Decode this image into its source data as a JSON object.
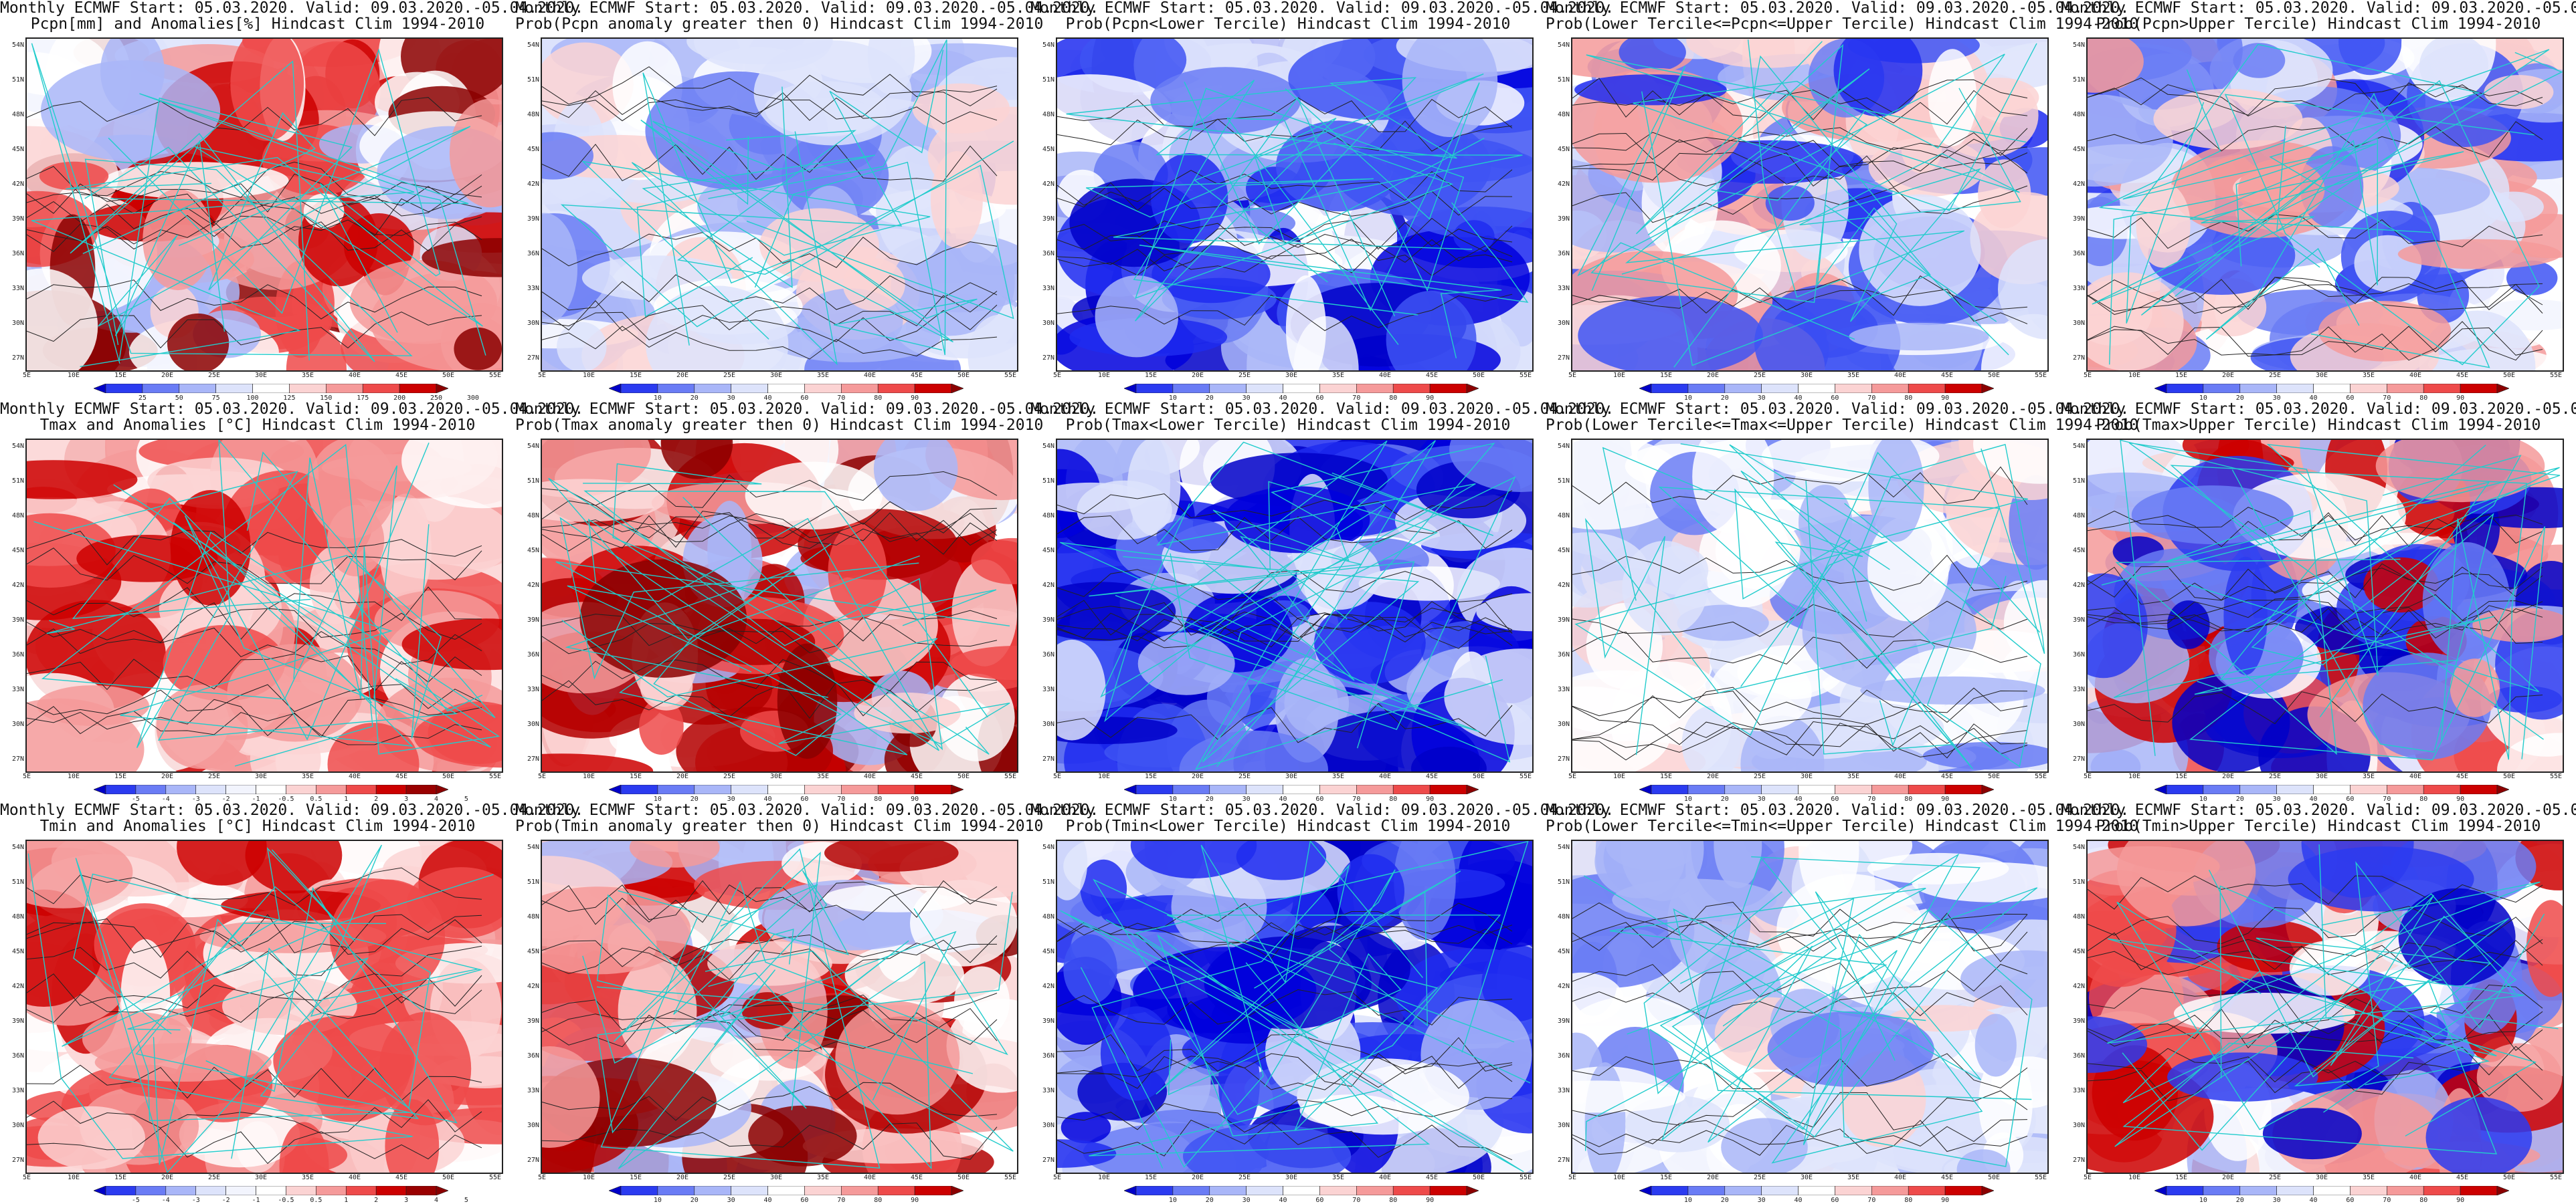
{
  "rows": [
    {
      "variable": "Pcpn",
      "panels": [
        {
          "line1": "Monthly ECMWF Start: 05.03.2020. Valid: 09.03.2020.-05.04.2020.",
          "line2": "Pcpn[mm] and Anomalies[%] Hindcast Clim 1994-2010",
          "scale": "precip_anom",
          "palette": "mixed_dry",
          "seed": 11
        },
        {
          "line1": "Monthly ECMWF Start: 05.03.2020. Valid: 09.03.2020.-05.04.2020.",
          "line2": "Prob(Pcpn anomaly greater then 0) Hindcast Clim 1994-2010",
          "scale": "prob",
          "palette": "blue_light",
          "seed": 12
        },
        {
          "line1": "Monthly ECMWF Start: 05.03.2020. Valid: 09.03.2020.-05.04.2020.",
          "line2": "Prob(Pcpn<Lower Tercile) Hindcast Clim 1994-2010",
          "scale": "prob",
          "palette": "blue_strong",
          "seed": 13
        },
        {
          "line1": "Monthly ECMWF Start: 05.03.2020. Valid: 09.03.2020.-05.04.2020.",
          "line2": "Prob(Lower Tercile<=Pcpn<=Upper Tercile) Hindcast Clim 1994-2010",
          "scale": "prob",
          "palette": "blue_mid",
          "seed": 14
        },
        {
          "line1": "Monthly ECMWF Start: 05.03.2020. Valid: 09.03.2020.-05.04.2020.",
          "line2": "Prob(Pcpn>Upper Tercile) Hindcast Clim 1994-2010",
          "scale": "prob",
          "palette": "blue_mid",
          "seed": 15
        }
      ]
    },
    {
      "variable": "Tmax",
      "panels": [
        {
          "line1": "Monthly ECMWF Start: 05.03.2020. Valid: 09.03.2020.-05.04.2020.",
          "line2": "Tmax and Anomalies [°C] Hindcast Clim 1994-2010",
          "scale": "temp_anom",
          "palette": "red_mid",
          "seed": 21
        },
        {
          "line1": "Monthly ECMWF Start: 05.03.2020. Valid: 09.03.2020.-05.04.2020.",
          "line2": "Prob(Tmax anomaly greater then 0) Hindcast Clim 1994-2010",
          "scale": "prob",
          "palette": "red_strong",
          "seed": 22
        },
        {
          "line1": "Monthly ECMWF Start: 05.03.2020. Valid: 09.03.2020.-05.04.2020.",
          "line2": "Prob(Tmax<Lower Tercile) Hindcast Clim 1994-2010",
          "scale": "prob",
          "palette": "blue_strong",
          "seed": 23
        },
        {
          "line1": "Monthly ECMWF Start: 05.03.2020. Valid: 09.03.2020.-05.04.2020.",
          "line2": "Prob(Lower Tercile<=Tmax<=Upper Tercile) Hindcast Clim 1994-2010",
          "scale": "prob",
          "palette": "blue_light",
          "seed": 24
        },
        {
          "line1": "Monthly ECMWF Start: 05.03.2020. Valid: 09.03.2020.-05.04.2020.",
          "line2": "Prob(Tmax>Upper Tercile) Hindcast Clim 1994-2010",
          "scale": "prob",
          "palette": "mixed_rb",
          "seed": 25
        }
      ]
    },
    {
      "variable": "Tmin",
      "panels": [
        {
          "line1": "Monthly ECMWF Start: 05.03.2020. Valid: 09.03.2020.-05.04.2020.",
          "line2": "Tmin and Anomalies [°C] Hindcast Clim 1994-2010",
          "scale": "temp_anom",
          "palette": "red_mid",
          "seed": 31
        },
        {
          "line1": "Monthly ECMWF Start: 05.03.2020. Valid: 09.03.2020.-05.04.2020.",
          "line2": "Prob(Tmin anomaly greater then 0) Hindcast Clim 1994-2010",
          "scale": "prob",
          "palette": "red_strong",
          "seed": 32
        },
        {
          "line1": "Monthly ECMWF Start: 05.03.2020. Valid: 09.03.2020.-05.04.2020.",
          "line2": "Prob(Tmin<Lower Tercile) Hindcast Clim 1994-2010",
          "scale": "prob",
          "palette": "blue_strong",
          "seed": 33
        },
        {
          "line1": "Monthly ECMWF Start: 05.03.2020. Valid: 09.03.2020.-05.04.2020.",
          "line2": "Prob(Lower Tercile<=Tmin<=Upper Tercile) Hindcast Clim 1994-2010",
          "scale": "prob",
          "palette": "blue_light",
          "seed": 34
        },
        {
          "line1": "Monthly ECMWF Start: 05.03.2020. Valid: 09.03.2020.-05.04.2020.",
          "line2": "Prob(Tmin>Upper Tercile) Hindcast Clim 1994-2010",
          "scale": "prob",
          "palette": "mixed_rb",
          "seed": 35
        }
      ]
    }
  ],
  "lat_labels": [
    "54N",
    "51N",
    "48N",
    "45N",
    "42N",
    "39N",
    "36N",
    "33N",
    "30N",
    "27N"
  ],
  "lon_labels": [
    "5E",
    "10E",
    "15E",
    "20E",
    "25E",
    "30E",
    "35E",
    "40E",
    "45E",
    "50E",
    "55E"
  ],
  "scales": {
    "prob": {
      "ticks": [
        "10",
        "20",
        "30",
        "40",
        "60",
        "70",
        "80",
        "90"
      ],
      "colors": [
        "#0000c8",
        "#2b3bf0",
        "#6a7cf5",
        "#a9b6f8",
        "#dde3fb",
        "#ffffff",
        "#fbd3d3",
        "#f59a9a",
        "#ee4a4a",
        "#cc0000",
        "#8b0000"
      ]
    },
    "precip_anom": {
      "ticks": [
        "25",
        "50",
        "75",
        "100",
        "125",
        "150",
        "175",
        "200",
        "250",
        "300"
      ],
      "colors": [
        "#0000c8",
        "#2b3bf0",
        "#6a7cf5",
        "#a9b6f8",
        "#dde3fb",
        "#ffffff",
        "#fbd3d3",
        "#f59a9a",
        "#ee4a4a",
        "#cc0000",
        "#8b0000"
      ]
    },
    "temp_anom": {
      "ticks": [
        "-5",
        "-4",
        "-3",
        "-2",
        "-1",
        "-0.5",
        "0.5",
        "1",
        "2",
        "3",
        "4",
        "5"
      ],
      "colors": [
        "#0000c8",
        "#2b3bf0",
        "#6a7cf5",
        "#a9b6f8",
        "#dde3fb",
        "#f2f4fd",
        "#ffffff",
        "#fbd3d3",
        "#f59a9a",
        "#ee4a4a",
        "#cc0000",
        "#990000",
        "#8b0000"
      ]
    }
  },
  "palettes": {
    "blue_strong": [
      "#0000c8",
      "#0000dd",
      "#1f2cf0",
      "#3e54f3",
      "#6a7cf5",
      "#a9b6f8",
      "#dde3fb",
      "#ffffff"
    ],
    "blue_mid": [
      "#1f2cf0",
      "#3e54f3",
      "#6a7cf5",
      "#a9b6f8",
      "#dde3fb",
      "#ffffff",
      "#fbd3d3",
      "#f59a9a"
    ],
    "blue_light": [
      "#6a7cf5",
      "#a9b6f8",
      "#dde3fb",
      "#ffffff",
      "#ffffff",
      "#dde3fb",
      "#a9b6f8",
      "#fbd3d3"
    ],
    "red_strong": [
      "#8b0000",
      "#b30000",
      "#cc0000",
      "#ee4a4a",
      "#f59a9a",
      "#fbd3d3",
      "#ffffff",
      "#a9b6f8"
    ],
    "red_mid": [
      "#cc0000",
      "#ee4a4a",
      "#f59a9a",
      "#fbd3d3",
      "#ffffff",
      "#fbd3d3",
      "#f59a9a",
      "#ee4a4a"
    ],
    "mixed_rb": [
      "#cc0000",
      "#ee4a4a",
      "#f59a9a",
      "#ffffff",
      "#a9b6f8",
      "#6a7cf5",
      "#2b3bf0",
      "#0000c8"
    ],
    "mixed_dry": [
      "#a9b6f8",
      "#dde3fb",
      "#ffffff",
      "#fbd3d3",
      "#f59a9a",
      "#ee4a4a",
      "#cc0000",
      "#8b0000"
    ]
  },
  "colors": {
    "contour": "#222222",
    "border": "#22cccc",
    "frame": "#222222"
  }
}
